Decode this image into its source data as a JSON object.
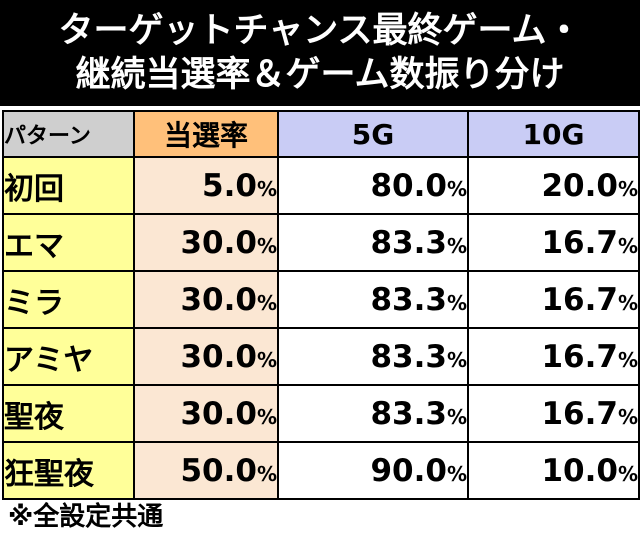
{
  "title": {
    "line1": "ターゲットチャンス最終ゲーム・",
    "line2": "継続当選率＆ゲーム数振り分け"
  },
  "headers": {
    "pattern": "パターン",
    "rate": "当選率",
    "g5": "5G",
    "g10": "10G"
  },
  "unit": "%",
  "rows": [
    {
      "name": "初回",
      "rate": "5.0",
      "g5": "80.0",
      "g10": "20.0"
    },
    {
      "name": "エマ",
      "rate": "30.0",
      "g5": "83.3",
      "g10": "16.7"
    },
    {
      "name": "ミラ",
      "rate": "30.0",
      "g5": "83.3",
      "g10": "16.7"
    },
    {
      "name": "アミヤ",
      "rate": "30.0",
      "g5": "83.3",
      "g10": "16.7"
    },
    {
      "name": "聖夜",
      "rate": "30.0",
      "g5": "83.3",
      "g10": "16.7"
    },
    {
      "name": "狂聖夜",
      "rate": "50.0",
      "g5": "90.0",
      "g10": "10.0"
    }
  ],
  "note": "※全設定共通",
  "colors": {
    "title_bg": "#000000",
    "pattern_header": "#cfcfcf",
    "rate_header": "#ffc07a",
    "game_header": "#c9ccf5",
    "name_cell": "#ffff99",
    "rate_cell": "#fbe7d3"
  }
}
